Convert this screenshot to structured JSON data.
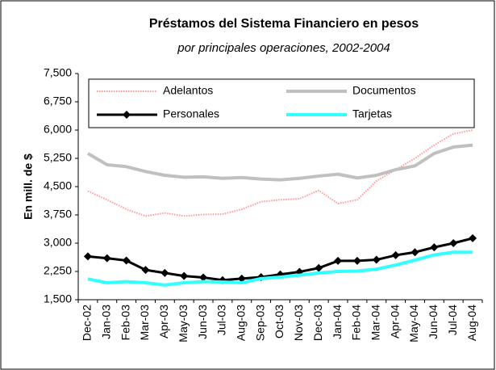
{
  "chart_data": {
    "type": "line",
    "title": "Préstamos del Sistema Financiero en pesos",
    "subtitle": "por principales operaciones, 2002-2004",
    "y_label": "En mill. de $",
    "categories": [
      "Dec-02",
      "Jan-03",
      "Feb-03",
      "Mar-03",
      "Apr-03",
      "May-03",
      "Jun-03",
      "Jul-03",
      "Aug-03",
      "Sep-03",
      "Oct-03",
      "Nov-03",
      "Dec-03",
      "Jan-04",
      "Feb-04",
      "Mar-04",
      "Apr-04",
      "May-04",
      "Jun-04",
      "Jul-04",
      "Aug-04"
    ],
    "series": [
      {
        "name": "Adelantos",
        "color": "#ff9999",
        "style": "dotted",
        "values": [
          4380,
          4150,
          3900,
          3720,
          3800,
          3720,
          3760,
          3770,
          3900,
          4100,
          4150,
          4180,
          4400,
          4050,
          4150,
          4650,
          4950,
          5250,
          5600,
          5900,
          6000
        ]
      },
      {
        "name": "Documentos",
        "color": "#c0c0c0",
        "style": "solid",
        "values": [
          5380,
          5080,
          5030,
          4900,
          4800,
          4750,
          4760,
          4720,
          4740,
          4700,
          4680,
          4720,
          4780,
          4830,
          4730,
          4800,
          4950,
          5050,
          5380,
          5550,
          5600
        ]
      },
      {
        "name": "Personales",
        "color": "#000000",
        "style": "solid",
        "marker": "diamond",
        "values": [
          2650,
          2600,
          2540,
          2290,
          2210,
          2130,
          2090,
          2020,
          2060,
          2100,
          2170,
          2240,
          2340,
          2530,
          2530,
          2560,
          2680,
          2760,
          2890,
          3000,
          3130
        ]
      },
      {
        "name": "Tarjetas",
        "color": "#33ffff",
        "style": "solid",
        "values": [
          2050,
          1950,
          1980,
          1950,
          1890,
          1950,
          1980,
          1970,
          1950,
          2060,
          2100,
          2150,
          2210,
          2250,
          2260,
          2310,
          2420,
          2550,
          2690,
          2760,
          2760
        ]
      }
    ],
    "ylim": [
      1500,
      7500
    ],
    "yticks": [
      {
        "value": 1500,
        "label": "1,500"
      },
      {
        "value": 2250,
        "label": "2,250"
      },
      {
        "value": 3000,
        "label": "3,000"
      },
      {
        "value": 3750,
        "label": "3,750"
      },
      {
        "value": 4500,
        "label": "4,500"
      },
      {
        "value": 5250,
        "label": "5,250"
      },
      {
        "value": 6000,
        "label": "6,000"
      },
      {
        "value": 6750,
        "label": "6,750"
      },
      {
        "value": 7500,
        "label": "7,500"
      }
    ],
    "grid": false
  }
}
